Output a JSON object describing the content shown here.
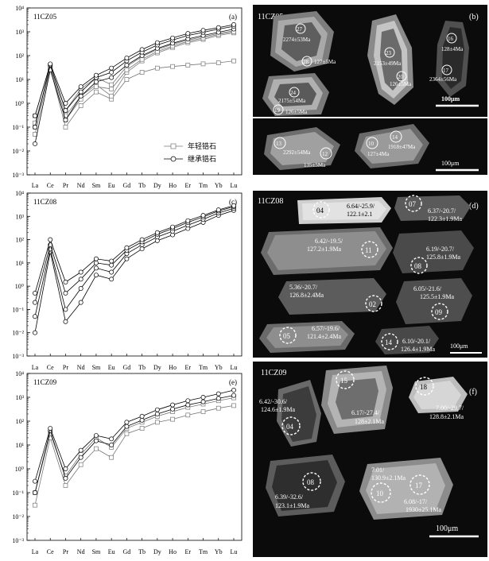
{
  "chart_data": [
    {
      "type": "line",
      "panel_tag": "(a)",
      "sample": "11CZ05",
      "title": "11CZ05",
      "log_scale_y": true,
      "ylim": [
        0.001,
        10000
      ],
      "y_tick_labels": [
        "10⁻³",
        "10⁻²",
        "10⁻¹",
        "10⁰",
        "10¹",
        "10²",
        "10³",
        "10⁴"
      ],
      "categories": [
        "La",
        "Ce",
        "Pr",
        "Nd",
        "Sm",
        "Eu",
        "Gd",
        "Tb",
        "Dy",
        "Ho",
        "Er",
        "Tm",
        "Yb",
        "Lu"
      ],
      "legend": {
        "placement": "bottom-right",
        "entries": [
          "年轻锆石",
          "继承锆石"
        ]
      },
      "series": [
        {
          "name": "年轻锆石",
          "marker": "square",
          "values": [
            0.05,
            30,
            0.1,
            0.8,
            3,
            1.5,
            10,
            20,
            30,
            35,
            40,
            45,
            50,
            60
          ]
        },
        {
          "name": "年轻锆石",
          "marker": "square",
          "values": [
            0.1,
            35,
            0.3,
            2,
            6,
            2,
            20,
            60,
            130,
            220,
            350,
            480,
            700,
            900
          ]
        },
        {
          "name": "年轻锆石",
          "marker": "square",
          "values": [
            0.3,
            40,
            0.5,
            4,
            12,
            6,
            35,
            90,
            180,
            300,
            450,
            620,
            850,
            1100
          ]
        },
        {
          "name": "年轻锆石",
          "marker": "square",
          "values": [
            0.15,
            28,
            0.2,
            1.5,
            5,
            4,
            25,
            70,
            150,
            250,
            400,
            550,
            780,
            1000
          ]
        },
        {
          "name": "继承锆石",
          "marker": "circle",
          "values": [
            0.02,
            25,
            0.2,
            2,
            8,
            12,
            40,
            100,
            200,
            330,
            500,
            700,
            950,
            1300
          ]
        },
        {
          "name": "继承锆石",
          "marker": "circle",
          "values": [
            0.1,
            40,
            0.5,
            3,
            12,
            20,
            60,
            140,
            280,
            450,
            700,
            950,
            1300,
            1700
          ]
        },
        {
          "name": "继承锆石",
          "marker": "circle",
          "values": [
            0.3,
            45,
            1,
            5,
            15,
            30,
            80,
            180,
            350,
            550,
            850,
            1150,
            1500,
            2000
          ]
        }
      ]
    },
    {
      "type": "line",
      "panel_tag": "(c)",
      "sample": "11CZ08",
      "title": "11CZ08",
      "log_scale_y": true,
      "ylim": [
        0.001,
        10000
      ],
      "y_tick_labels": [
        "10⁻³",
        "10⁻²",
        "10⁻¹",
        "10⁰",
        "10¹",
        "10²",
        "10³",
        "10⁴"
      ],
      "categories": [
        "La",
        "Ce",
        "Pr",
        "Nd",
        "Sm",
        "Eu",
        "Gd",
        "Tb",
        "Dy",
        "Ho",
        "Er",
        "Tm",
        "Yb",
        "Lu"
      ],
      "series": [
        {
          "marker": "circle",
          "values": [
            0.01,
            30,
            0.03,
            0.2,
            3,
            2,
            15,
            40,
            90,
            160,
            300,
            550,
            1100,
            1800
          ]
        },
        {
          "marker": "circle",
          "values": [
            0.05,
            40,
            0.1,
            0.8,
            6,
            4,
            25,
            60,
            130,
            230,
            420,
            750,
            1400,
            2200
          ]
        },
        {
          "marker": "circle",
          "values": [
            0.2,
            60,
            0.5,
            2,
            10,
            8,
            35,
            80,
            170,
            300,
            550,
            950,
            1700,
            2600
          ]
        },
        {
          "marker": "circle",
          "values": [
            0.5,
            100,
            1.5,
            4,
            15,
            12,
            45,
            100,
            200,
            350,
            650,
            1100,
            1900,
            2900
          ]
        }
      ]
    },
    {
      "type": "line",
      "panel_tag": "(e)",
      "sample": "11CZ09",
      "title": "11CZ09",
      "log_scale_y": true,
      "ylim": [
        0.001,
        10000
      ],
      "y_tick_labels": [
        "10⁻³",
        "10⁻²",
        "10⁻¹",
        "10⁰",
        "10¹",
        "10²",
        "10³",
        "10⁴"
      ],
      "categories": [
        "La",
        "Ce",
        "Pr",
        "Nd",
        "Sm",
        "Eu",
        "Gd",
        "Tb",
        "Dy",
        "Ho",
        "Er",
        "Tm",
        "Yb",
        "Lu"
      ],
      "series": [
        {
          "marker": "square",
          "values": [
            0.03,
            20,
            0.2,
            1.5,
            7,
            3,
            30,
            50,
            90,
            120,
            180,
            250,
            350,
            450
          ]
        },
        {
          "marker": "square",
          "values": [
            0.1,
            30,
            0.5,
            4,
            20,
            8,
            50,
            90,
            160,
            250,
            380,
            520,
            720,
            950
          ]
        },
        {
          "marker": "circle",
          "values": [
            0.1,
            40,
            0.4,
            3,
            15,
            10,
            60,
            110,
            200,
            320,
            480,
            650,
            900,
            1200
          ]
        },
        {
          "marker": "circle",
          "values": [
            0.3,
            50,
            1,
            6,
            25,
            18,
            90,
            160,
            300,
            480,
            720,
            1000,
            1400,
            2000
          ]
        }
      ]
    }
  ],
  "figure": {
    "panels": [
      {
        "tag": "(b)",
        "sample": "11CZ05",
        "scale": "100μm",
        "subpanels": [
          {
            "grains": [
              {
                "spot": "27",
                "labels": [
                  "2274±53Ma"
                ]
              },
              {
                "spot": "28",
                "labels": [
                  "127±5Ma"
                ]
              },
              {
                "spot": "23",
                "labels": [
                  "2153±49Ma"
                ]
              },
              {
                "spot": "20",
                "labels": [
                  "126±5Ma"
                ]
              },
              {
                "spot": "16",
                "labels": [
                  "128±4Ma"
                ]
              },
              {
                "spot": "17",
                "labels": [
                  "2364±56Ma"
                ]
              },
              {
                "spot": "24",
                "labels": [
                  "2175±54Ma"
                ]
              },
              {
                "spot": "19",
                "labels": [
                  "126±5Ma"
                ]
              }
            ],
            "scale": "100μm"
          },
          {
            "grains": [
              {
                "spot": "13",
                "labels": [
                  "2292±54Ma"
                ]
              },
              {
                "spot": "12",
                "labels": [
                  "135±5Ma"
                ]
              },
              {
                "spot": "14",
                "labels": [
                  "1918±47Ma"
                ]
              },
              {
                "spot": "10",
                "labels": [
                  "127±4Ma"
                ]
              }
            ],
            "scale": "100μm"
          }
        ]
      },
      {
        "tag": "(d)",
        "sample": "11CZ08",
        "scale": "100μm",
        "grains": [
          {
            "spot": "04",
            "labels": [
              "6.64/-25.9/",
              "122.1±2.1"
            ]
          },
          {
            "spot": "07",
            "labels": [
              "6.37/-20.7/",
              "122.3±1.9Ma"
            ]
          },
          {
            "spot": "11",
            "labels": [
              "6.42/-19.5/",
              "127.2±1.9Ma"
            ]
          },
          {
            "spot": "08",
            "labels": [
              "6.19/-20.7/",
              "125.8±1.9Ma"
            ]
          },
          {
            "spot": "02",
            "labels": [
              "5.36/-20.7/",
              "126.8±2.4Ma"
            ]
          },
          {
            "spot": "09",
            "labels": [
              "6.05/-21.6/",
              "125.5±1.9Ma"
            ]
          },
          {
            "spot": "05",
            "labels": [
              "6.57/-19.6/",
              "121.4±2.4Ma"
            ]
          },
          {
            "spot": "14",
            "labels": [
              "6.10/-20.1/",
              "126.4±1.9Ma"
            ]
          }
        ]
      },
      {
        "tag": "(f)",
        "sample": "11CZ09",
        "scale": "100μm",
        "grains": [
          {
            "spot": "04",
            "labels": [
              "6.42/-30.6/",
              "124.6±1.9Ma"
            ]
          },
          {
            "spot": "15",
            "labels": [
              "6.17/-27.4/",
              "128±2.1Ma"
            ]
          },
          {
            "spot": "18",
            "labels": [
              "7.00/-29.7/",
              "128.8±2.1Ma"
            ]
          },
          {
            "spot": "08",
            "labels": [
              "6.39/-32.6/",
              "123.1±1.9Ma"
            ]
          },
          {
            "spot": "10",
            "labels": [
              "7.01/",
              "130.9±2.1Ma"
            ]
          },
          {
            "spot": "17",
            "labels": [
              "6.08/-17/",
              "1930±25.1Ma"
            ]
          }
        ]
      }
    ]
  },
  "colors": {
    "panel_bg": "#0b0b0b",
    "line": "#000000",
    "grain_light": "#b9b9b9",
    "grain_mid": "#7a7a7a",
    "grain_dark": "#3a3a3a",
    "dashed_ring": "#ffffff"
  }
}
